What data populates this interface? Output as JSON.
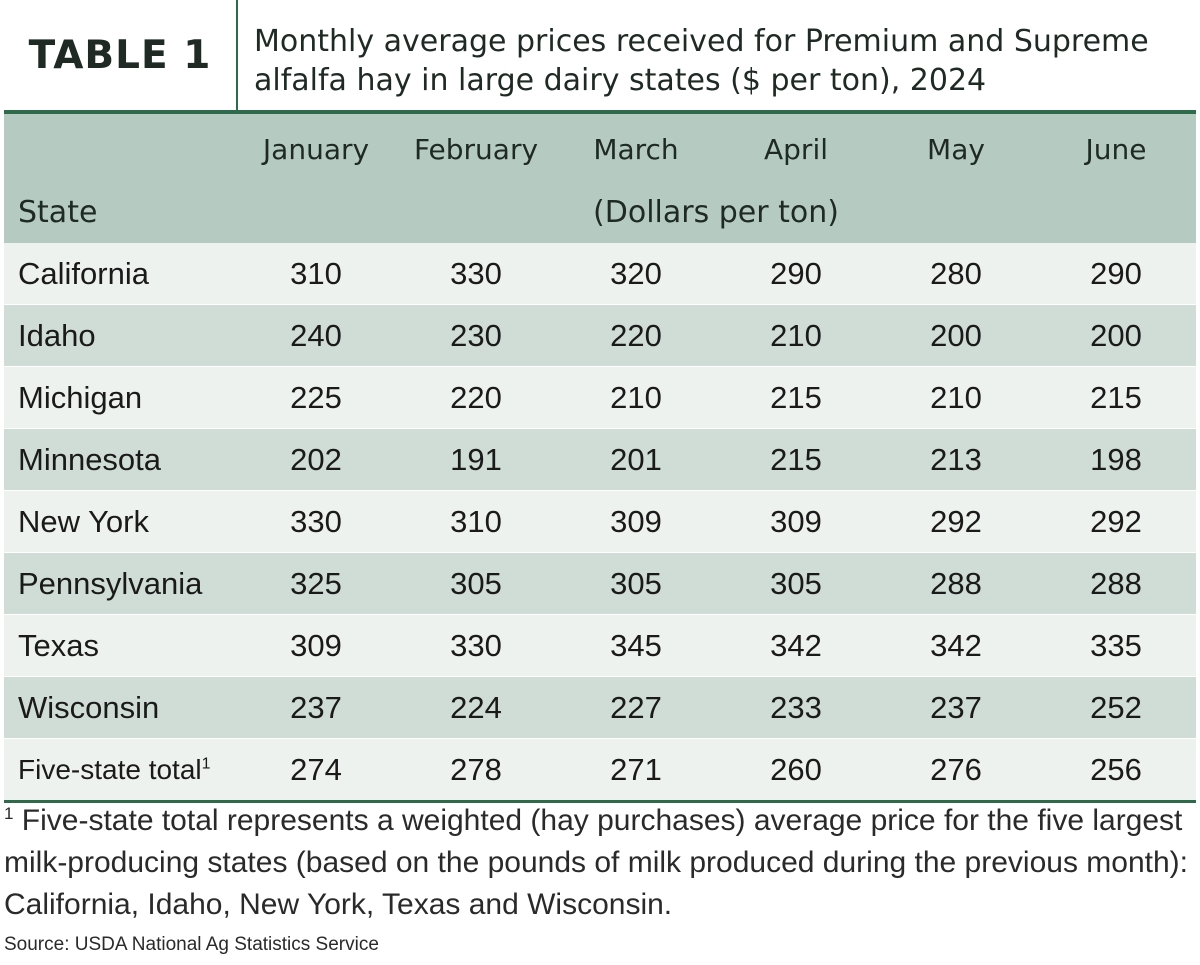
{
  "header": {
    "table_label": "TABLE 1",
    "title": "Monthly average prices received for Premium and Supreme alfalfa hay in large dairy states ($ per ton), 2024"
  },
  "table": {
    "state_header": "State",
    "units_header": "(Dollars per ton)",
    "months": [
      "January",
      "February",
      "March",
      "April",
      "May",
      "June"
    ],
    "rows": [
      {
        "state": "California",
        "values": [
          "310",
          "330",
          "320",
          "290",
          "280",
          "290"
        ]
      },
      {
        "state": "Idaho",
        "values": [
          "240",
          "230",
          "220",
          "210",
          "200",
          "200"
        ]
      },
      {
        "state": "Michigan",
        "values": [
          "225",
          "220",
          "210",
          "215",
          "210",
          "215"
        ]
      },
      {
        "state": "Minnesota",
        "values": [
          "202",
          "191",
          "201",
          "215",
          "213",
          "198"
        ]
      },
      {
        "state": "New York",
        "values": [
          "330",
          "310",
          "309",
          "309",
          "292",
          "292"
        ]
      },
      {
        "state": "Pennsylvania",
        "values": [
          "325",
          "305",
          "305",
          "305",
          "288",
          "288"
        ]
      },
      {
        "state": "Texas",
        "values": [
          "309",
          "330",
          "345",
          "342",
          "342",
          "335"
        ]
      },
      {
        "state": "Wisconsin",
        "values": [
          "237",
          "224",
          "227",
          "233",
          "237",
          "252"
        ]
      }
    ],
    "total_row": {
      "state": "Five-state total",
      "footnote_mark": "1",
      "values": [
        "274",
        "278",
        "271",
        "260",
        "276",
        "256"
      ]
    }
  },
  "footnote": {
    "mark": "1",
    "text": " Five-state total represents a weighted (hay purchases) average price for the five largest milk-producing states (based on the pounds of milk produced during the previous month): California, Idaho, New York, Texas and Wisconsin."
  },
  "source": "Source: USDA National Ag Statistics Service",
  "colors": {
    "accent_green": "#2f6b4b",
    "header_fill": "#b5cbc1",
    "row_light": "#eef2ef",
    "row_dark": "#cfddd6"
  }
}
